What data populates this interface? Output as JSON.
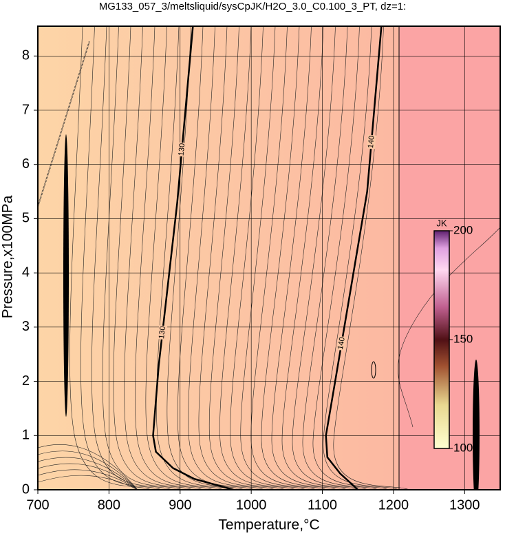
{
  "chart_data": {
    "type": "contour",
    "title": "MG133_057_3/meltsliquid/sysCpJK/H2O_3.0_C0.100_3_PT, dz=1:",
    "x_label": "Temperature,°C",
    "y_label": "Pressure,x100MPa",
    "xlim": [
      700,
      1350
    ],
    "xticks": [
      700,
      800,
      900,
      1000,
      1100,
      1200,
      1300
    ],
    "ylim": [
      0,
      8.55
    ],
    "yticks": [
      0,
      1,
      2,
      3,
      4,
      5,
      6,
      7,
      8
    ],
    "grid": true,
    "contours": [
      {
        "level": 130,
        "color": "#000000",
        "x": [
          975,
          920,
          890,
          866,
          862,
          870,
          896,
          918
        ],
        "y": [
          0,
          0.2,
          0.4,
          0.7,
          1,
          2.3,
          5.3,
          8.55
        ]
      },
      {
        "level": 140,
        "color": "#000000",
        "x": [
          1150,
          1125,
          1107,
          1105,
          1118,
          1163,
          1183
        ],
        "y": [
          0,
          0.3,
          0.6,
          1,
          2,
          5.5,
          8.55
        ]
      }
    ],
    "colorbar": {
      "label": "JK",
      "lim": [
        100,
        200
      ],
      "ticks": [
        100,
        150,
        200
      ]
    }
  }
}
